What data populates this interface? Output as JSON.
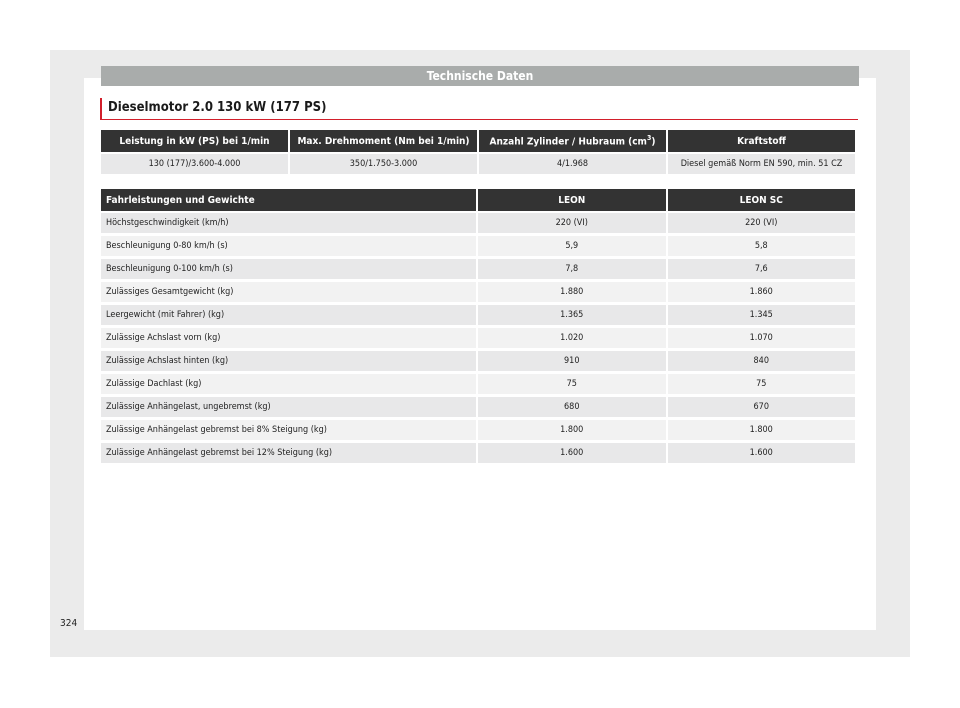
{
  "header": {
    "title": "Technische Daten"
  },
  "section": {
    "title": "Dieselmotor 2.0 130 kW (177 PS)"
  },
  "engine_table": {
    "headers": [
      "Leistung in kW (PS) bei 1/min",
      "Max. Drehmoment (Nm bei 1/min)",
      "Anzahl Zylinder / Hubraum (cm",
      "Kraftstoff"
    ],
    "header_sup": "3",
    "header_close": ")",
    "row": [
      "130 (177)/3.600-4.000",
      "350/1.750-3.000",
      "4/1.968",
      "Diesel gemäß Norm EN 590, min. 51 CZ"
    ]
  },
  "perf_table": {
    "headers": [
      "Fahrleistungen und Gewichte",
      "LEON",
      "LEON SC"
    ],
    "rows": [
      [
        "Höchstgeschwindigkeit (km/h)",
        "220 (VI)",
        "220 (VI)"
      ],
      [
        "Beschleunigung 0-80 km/h (s)",
        "5,9",
        "5,8"
      ],
      [
        "Beschleunigung 0-100 km/h (s)",
        "7,8",
        "7,6"
      ],
      [
        "Zulässiges Gesamtgewicht (kg)",
        "1.880",
        "1.860"
      ],
      [
        "Leergewicht (mit Fahrer) (kg)",
        "1.365",
        "1.345"
      ],
      [
        "Zulässige Achslast vorn (kg)",
        "1.020",
        "1.070"
      ],
      [
        "Zulässige Achslast hinten (kg)",
        "910",
        "840"
      ],
      [
        "Zulässige Dachlast (kg)",
        "75",
        "75"
      ],
      [
        "Zulässige Anhängelast, ungebremst (kg)",
        "680",
        "670"
      ],
      [
        "Zulässige Anhängelast gebremst bei 8% Steigung (kg)",
        "1.800",
        "1.800"
      ],
      [
        "Zulässige Anhängelast gebremst bei 12% Steigung (kg)",
        "1.600",
        "1.600"
      ]
    ]
  },
  "page_number": "324"
}
